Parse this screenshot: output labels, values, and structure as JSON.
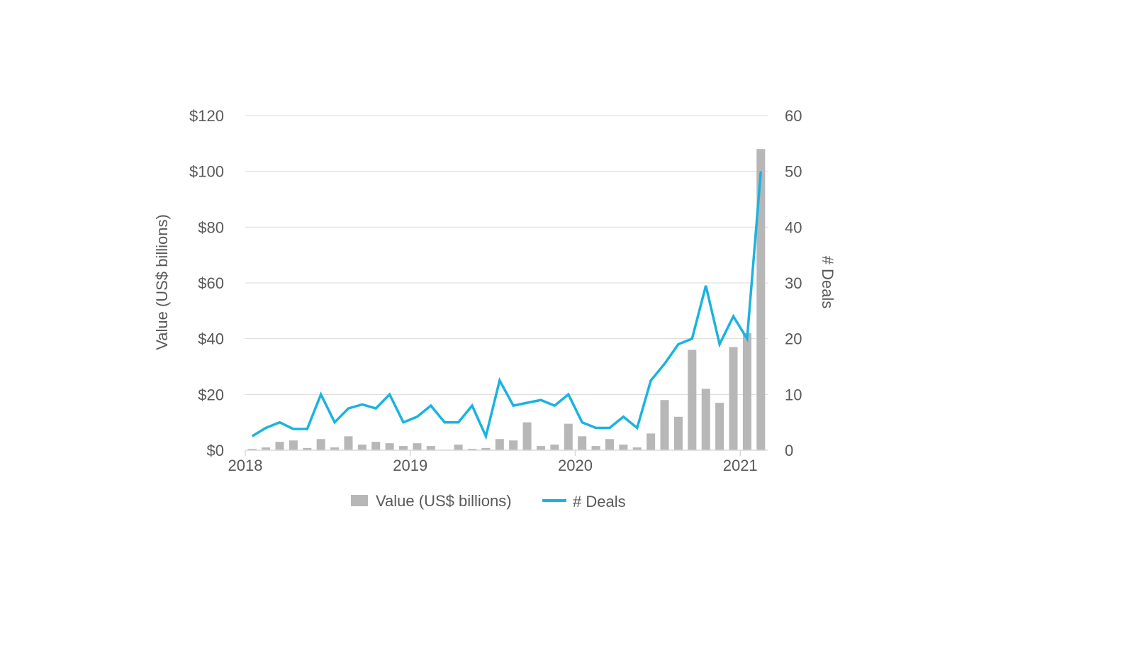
{
  "chart_data": {
    "type": "bar",
    "title": "",
    "x_tick_labels": [
      "2018",
      "2019",
      "2020",
      "2021"
    ],
    "ylabel_left": "Value (US$ billions)",
    "ylabel_right": "# Deals",
    "ylim_left": [
      0,
      120
    ],
    "ylim_right": [
      0,
      60
    ],
    "y_ticks_left": [
      "$0",
      "$20",
      "$40",
      "$60",
      "$80",
      "$100",
      "$120"
    ],
    "y_ticks_right": [
      "0",
      "10",
      "20",
      "30",
      "40",
      "50",
      "60"
    ],
    "grid": true,
    "legend_position": "bottom",
    "colors": {
      "bars": "#b7b7b7",
      "line": "#1ab3e0",
      "grid": "#d9d9d9",
      "text": "#595959"
    },
    "series": [
      {
        "name": "Value (US$ billions)",
        "kind": "bar",
        "axis": "left",
        "values": [
          0.5,
          1,
          3,
          3.5,
          0.8,
          4,
          1,
          5,
          2,
          3,
          2.5,
          1.5,
          2.5,
          1.5,
          0.2,
          2,
          0.5,
          0.8,
          4,
          3.5,
          10,
          1.5,
          2,
          9.5,
          5,
          1.5,
          4,
          2,
          1,
          6,
          18,
          12,
          36,
          22,
          17,
          37,
          42,
          108
        ]
      },
      {
        "name": "# Deals",
        "kind": "line",
        "axis": "right",
        "values": [
          2.5,
          4,
          5,
          3.8,
          3.8,
          10,
          5,
          7.5,
          8.2,
          7.5,
          10,
          5,
          6,
          8,
          5,
          5,
          8,
          2.5,
          12.5,
          8,
          8.5,
          9,
          8,
          10,
          5,
          4,
          4,
          6,
          4,
          12.5,
          15.5,
          19,
          20,
          29.5,
          19,
          24,
          20,
          50
        ]
      }
    ]
  }
}
